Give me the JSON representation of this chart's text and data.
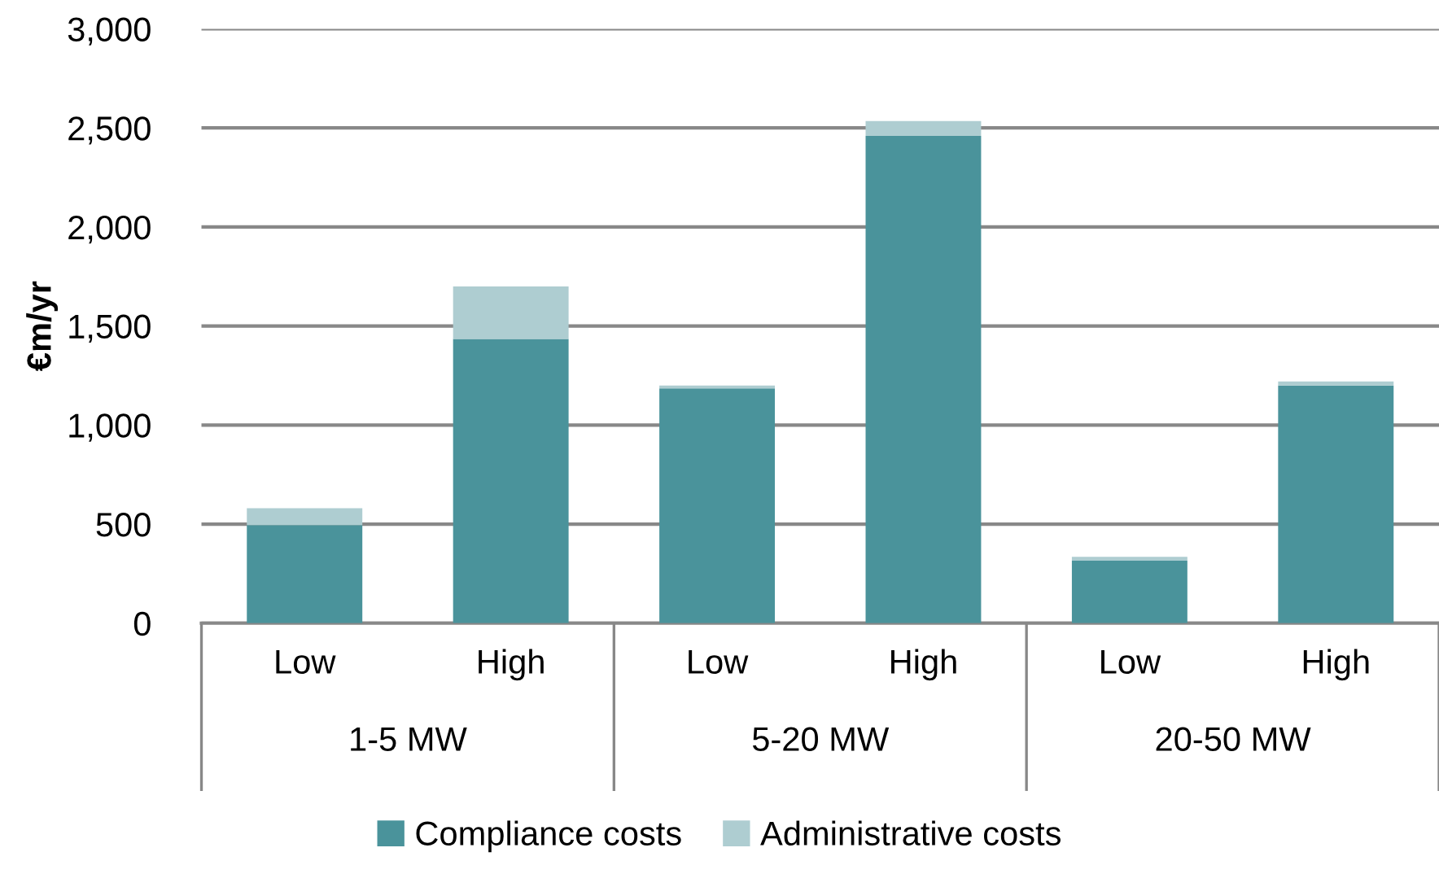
{
  "chart_data": {
    "type": "bar",
    "ylabel": "€m/yr",
    "categories": [
      "Low",
      "High",
      "Low",
      "High",
      "Low",
      "High"
    ],
    "annotations": [
      "1-5 MW",
      "5-20 MW",
      "20-50 MW"
    ],
    "stacked": true,
    "series": [
      {
        "name": "Compliance costs",
        "color": "#4a939b",
        "values": [
          495,
          1435,
          1185,
          2460,
          315,
          1200
        ]
      },
      {
        "name": "Administrative costs",
        "color": "#aecdd1",
        "values": [
          85,
          265,
          15,
          75,
          20,
          20
        ]
      }
    ],
    "ylim": [
      0,
      3000
    ],
    "yticks": [
      {
        "value": 0,
        "label": "0"
      },
      {
        "value": 500,
        "label": "500"
      },
      {
        "value": 1000,
        "label": "1,000"
      },
      {
        "value": 1500,
        "label": "1,500"
      },
      {
        "value": 2000,
        "label": "2,000"
      },
      {
        "value": 2500,
        "label": "2,500"
      },
      {
        "value": 3000,
        "label": "3,000"
      }
    ],
    "grid": "y",
    "legend": "bottom"
  }
}
